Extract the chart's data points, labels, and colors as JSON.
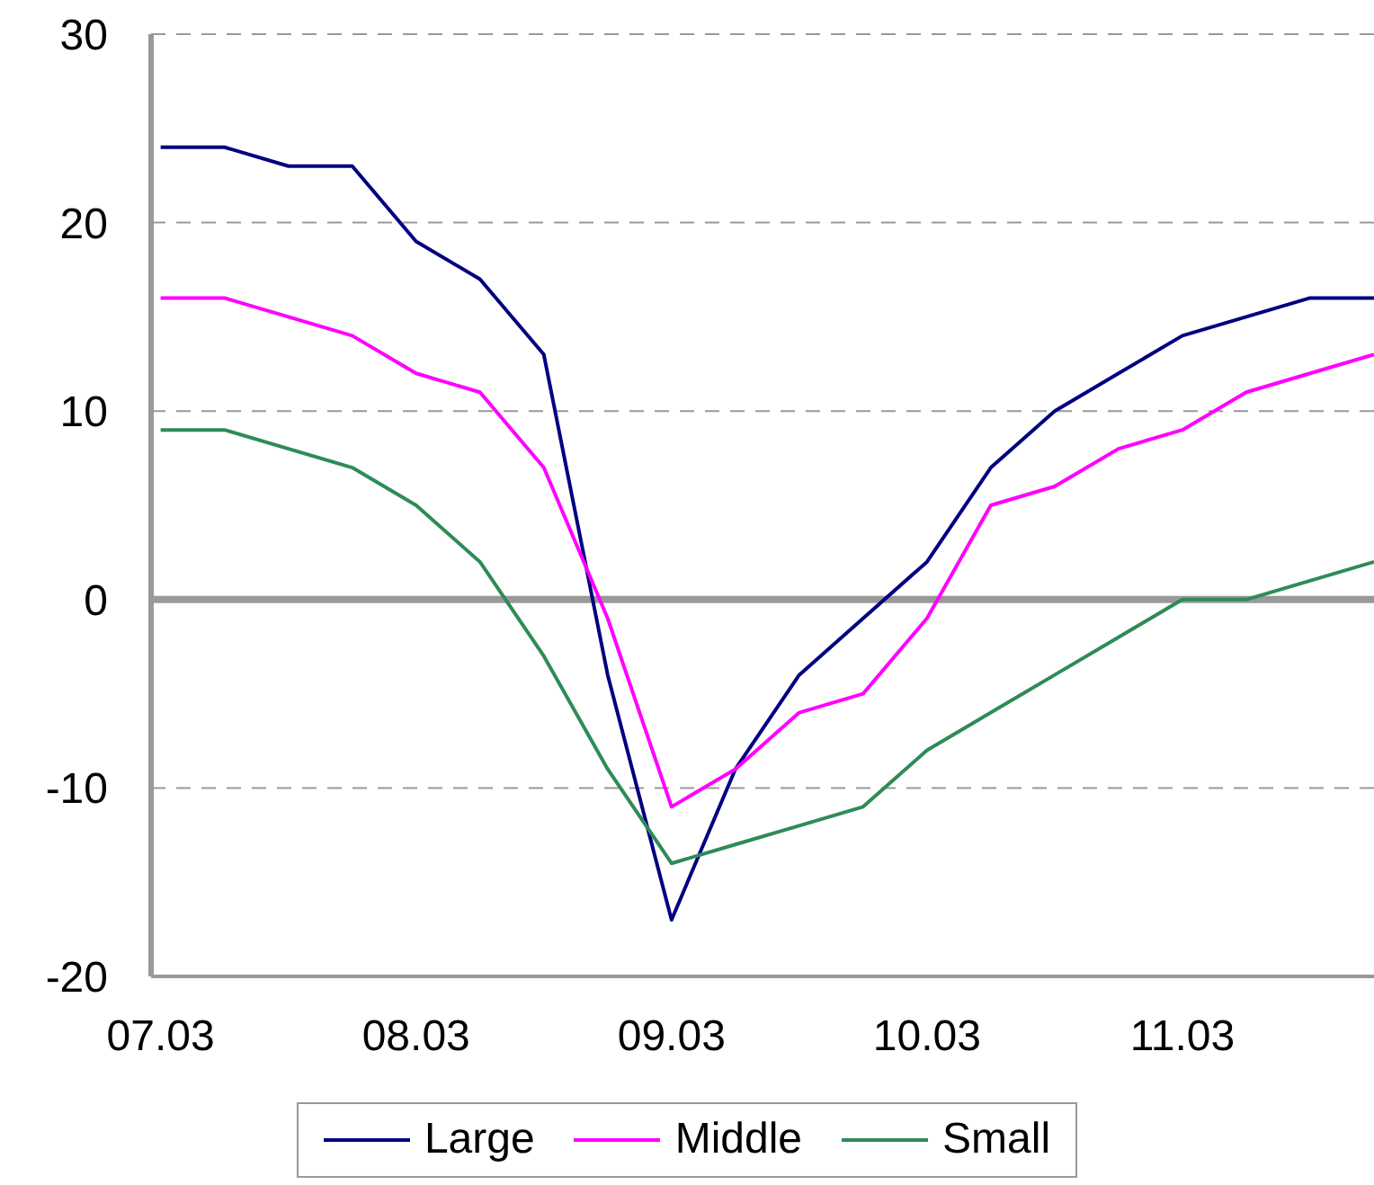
{
  "chart_data": {
    "type": "line",
    "categories": [
      "07.03",
      null,
      null,
      null,
      "08.03",
      null,
      null,
      null,
      "09.03",
      null,
      null,
      null,
      "10.03",
      null,
      null,
      null,
      "11.03",
      null,
      null,
      null
    ],
    "series": [
      {
        "name": "Large",
        "color": "#000080",
        "values": [
          24,
          24,
          23,
          23,
          19,
          17,
          13,
          -4,
          -17,
          -9,
          -4,
          -1,
          2,
          7,
          10,
          12,
          14,
          15,
          16,
          16
        ]
      },
      {
        "name": "Middle",
        "color": "#ff00ff",
        "values": [
          16,
          16,
          15,
          14,
          12,
          11,
          7,
          -1,
          -11,
          -9,
          -6,
          -5,
          -1,
          5,
          6,
          8,
          9,
          11,
          12,
          13
        ]
      },
      {
        "name": "Small",
        "color": "#2e8b57",
        "values": [
          9,
          9,
          8,
          7,
          5,
          2,
          -3,
          -9,
          -14,
          -13,
          -12,
          -11,
          -8,
          -6,
          -4,
          -2,
          0,
          0,
          1,
          2
        ]
      }
    ],
    "ylim": [
      -20,
      30
    ],
    "yticks": [
      -20,
      -10,
      0,
      10,
      20,
      30
    ],
    "grid": "y",
    "legend": "bottom",
    "marker": "none",
    "line_style": "solid"
  }
}
